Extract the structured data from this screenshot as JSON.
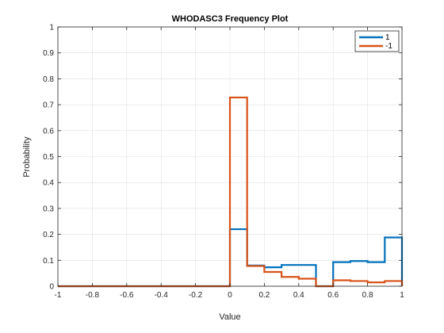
{
  "chart_data": {
    "type": "line",
    "step": true,
    "title": "WHODASC3 Frequency Plot",
    "xlabel": "Value",
    "ylabel": "Probability",
    "xlim": [
      -1,
      1
    ],
    "ylim": [
      0,
      1
    ],
    "xticks": [
      -1,
      -0.8,
      -0.6,
      -0.4,
      -0.2,
      0,
      0.2,
      0.4,
      0.6,
      0.8,
      1
    ],
    "xtick_labels": [
      "-1",
      "-0.8",
      "-0.6",
      "-0.4",
      "-0.2",
      "0",
      "0.2",
      "0.4",
      "0.6",
      "0.8",
      "1"
    ],
    "yticks": [
      0,
      0.1,
      0.2,
      0.3,
      0.4,
      0.5,
      0.6,
      0.7,
      0.8,
      0.9,
      1
    ],
    "ytick_labels": [
      "0",
      "0.1",
      "0.2",
      "0.3",
      "0.4",
      "0.5",
      "0.6",
      "0.7",
      "0.8",
      "0.9",
      "1"
    ],
    "grid": true,
    "legend_position": "top-right",
    "bin_edges": [
      -1,
      -0.9,
      -0.8,
      -0.7,
      -0.6,
      -0.5,
      -0.4,
      -0.3,
      -0.2,
      -0.1,
      0,
      0.1,
      0.2,
      0.3,
      0.4,
      0.5,
      0.6,
      0.7,
      0.8,
      0.9,
      1
    ],
    "series": [
      {
        "name": "1",
        "color": "#0072BD",
        "values": [
          0,
          0,
          0,
          0,
          0,
          0,
          0,
          0,
          0,
          0,
          0.22,
          0.08,
          0.073,
          0.082,
          0.082,
          0,
          0.093,
          0.097,
          0.093,
          0.188
        ]
      },
      {
        "name": "-1",
        "color": "#D95319",
        "values": [
          0,
          0,
          0,
          0,
          0,
          0,
          0,
          0,
          0,
          0,
          0.728,
          0.078,
          0.055,
          0.036,
          0.029,
          0,
          0.023,
          0.02,
          0.015,
          0.02
        ]
      }
    ]
  }
}
